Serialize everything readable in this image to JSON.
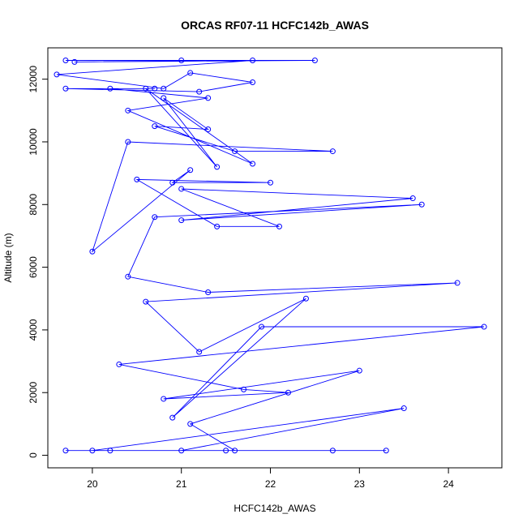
{
  "chart_data": {
    "type": "scatter",
    "title": "ORCAS RF07-11 HCFC142b_AWAS",
    "xlabel": "HCFC142b_AWAS",
    "ylabel": "Altitude (m)",
    "xlim": [
      19.5,
      24.6
    ],
    "ylim": [
      -400,
      13000
    ],
    "xticks": [
      20,
      21,
      22,
      23,
      24
    ],
    "yticks": [
      0,
      2000,
      4000,
      6000,
      8000,
      10000,
      12000
    ],
    "grid": false,
    "legend": "none",
    "color": "#0000ff",
    "series": [
      {
        "mode": "lines+markers",
        "points": [
          [
            19.7,
            12600
          ],
          [
            21.0,
            12600
          ],
          [
            22.5,
            12600
          ],
          [
            19.8,
            12550
          ],
          [
            21.8,
            12600
          ],
          [
            19.6,
            12150
          ],
          [
            20.8,
            11700
          ],
          [
            21.1,
            12200
          ],
          [
            21.8,
            11900
          ],
          [
            21.2,
            11600
          ],
          [
            19.7,
            11700
          ],
          [
            20.7,
            11700
          ],
          [
            20.2,
            11700
          ],
          [
            21.3,
            11400
          ],
          [
            20.4,
            11000
          ],
          [
            21.8,
            9300
          ],
          [
            20.6,
            11700
          ],
          [
            21.4,
            9200
          ],
          [
            20.8,
            11400
          ],
          [
            21.3,
            10400
          ],
          [
            20.7,
            10500
          ],
          [
            21.6,
            9700
          ],
          [
            22.7,
            9700
          ],
          [
            20.4,
            10000
          ],
          [
            20.0,
            6500
          ],
          [
            21.1,
            9100
          ],
          [
            20.9,
            8700
          ],
          [
            22.0,
            8700
          ],
          [
            20.5,
            8800
          ],
          [
            21.4,
            7300
          ],
          [
            22.1,
            7300
          ],
          [
            21.0,
            8500
          ],
          [
            23.6,
            8200
          ],
          [
            21.0,
            7500
          ],
          [
            23.7,
            8000
          ],
          [
            20.7,
            7600
          ],
          [
            20.4,
            5700
          ],
          [
            21.3,
            5200
          ],
          [
            24.1,
            5500
          ],
          [
            20.6,
            4900
          ],
          [
            21.2,
            3300
          ],
          [
            22.4,
            5000
          ],
          [
            20.9,
            1200
          ],
          [
            21.9,
            4100
          ],
          [
            24.4,
            4100
          ],
          [
            20.3,
            2900
          ],
          [
            21.7,
            2100
          ],
          [
            22.2,
            2000
          ],
          [
            20.8,
            1800
          ],
          [
            23.0,
            2700
          ],
          [
            21.1,
            1000
          ],
          [
            21.6,
            150
          ],
          [
            20.0,
            150
          ],
          [
            23.5,
            1500
          ],
          [
            21.0,
            150
          ],
          [
            22.7,
            150
          ],
          [
            19.7,
            150
          ],
          [
            23.3,
            150
          ],
          [
            21.5,
            150
          ],
          [
            20.2,
            150
          ]
        ]
      }
    ]
  }
}
